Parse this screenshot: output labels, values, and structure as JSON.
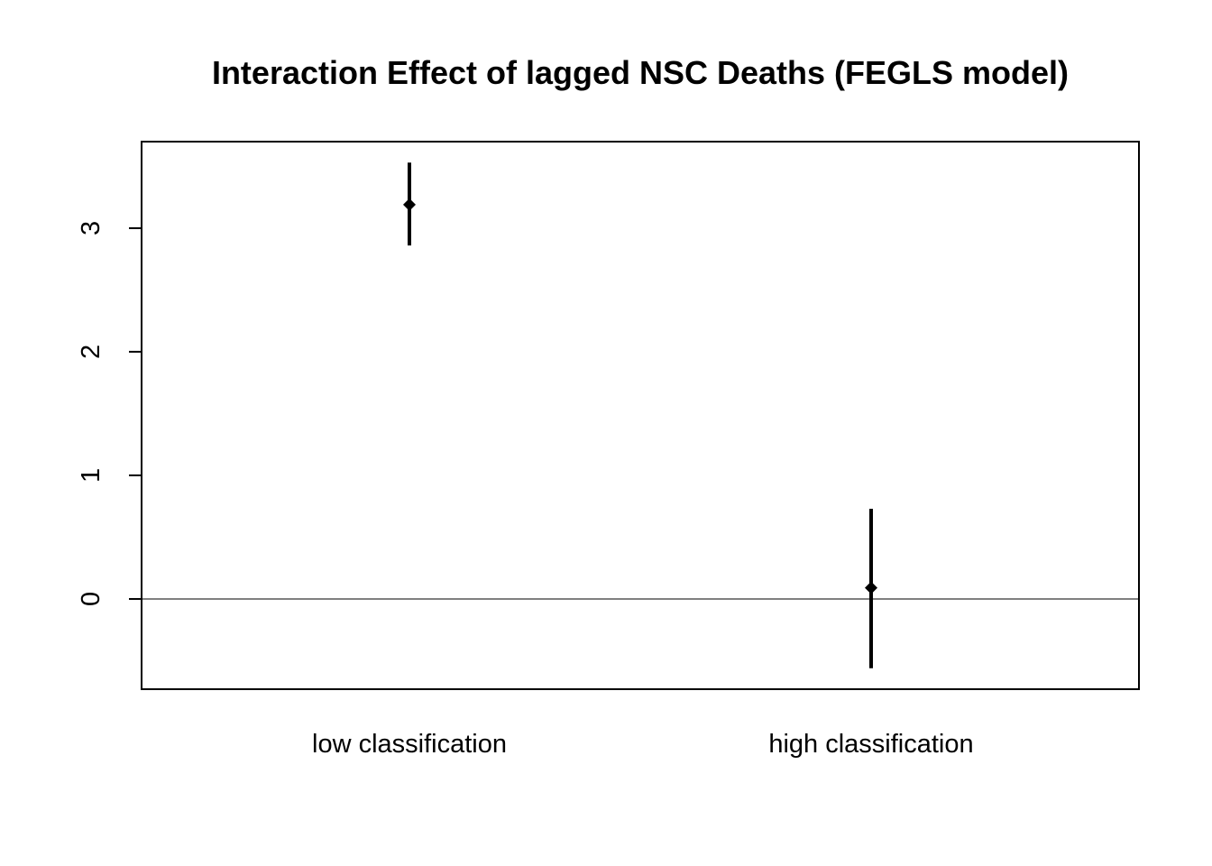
{
  "chart_data": {
    "type": "scatter",
    "title": "Interaction Effect of lagged NSC Deaths (FEGLS model)",
    "xlabel": "",
    "ylabel": "",
    "categories": [
      "low classification",
      "high classification"
    ],
    "series": [
      {
        "estimates": [
          3.19,
          0.09
        ],
        "ci_lower": [
          2.86,
          -0.56
        ],
        "ci_upper": [
          3.53,
          0.73
        ]
      }
    ],
    "ylim": [
      -0.73,
      3.7
    ],
    "yticks": [
      0,
      1,
      2,
      3
    ],
    "reference_line": 0,
    "grid": false,
    "legend": "none",
    "colors": {
      "points": "#000000",
      "reference_line": "#000000",
      "frame": "#000000"
    }
  }
}
